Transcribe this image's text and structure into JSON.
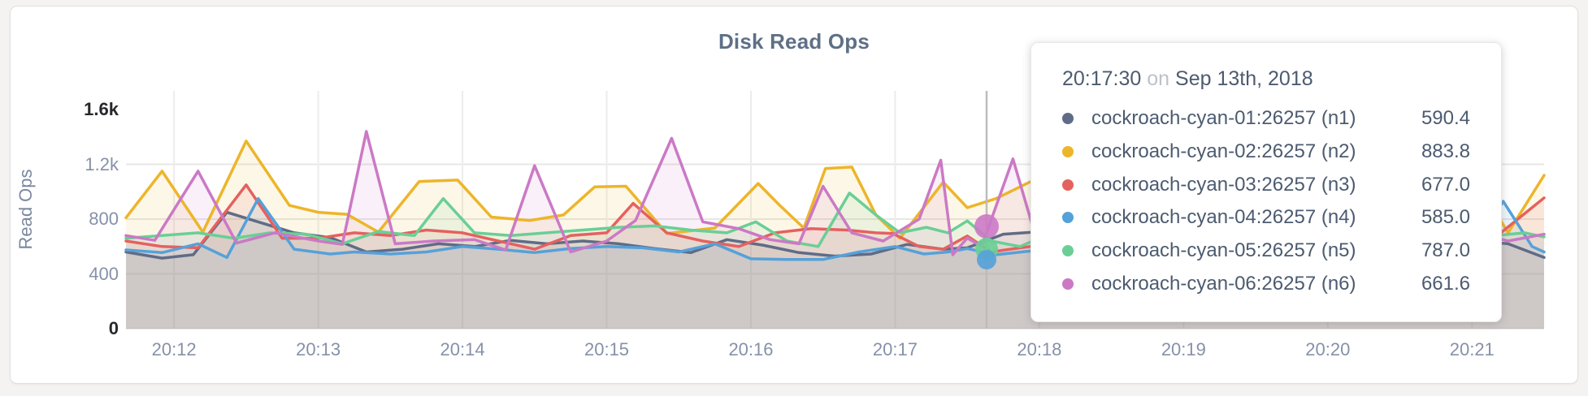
{
  "chart": {
    "title": "Disk Read Ops",
    "y_axis_label": "Read Ops"
  },
  "chart_data": {
    "type": "line",
    "title": "Disk Read Ops",
    "xlabel": "",
    "ylabel": "Read Ops",
    "x_start": "20:11:40",
    "x_end": "20:21:30",
    "x_unit_seconds": 590,
    "ylim": [
      0,
      1600
    ],
    "grid": true,
    "legend_position": "tooltip",
    "x_ticks": [
      {
        "t": 20,
        "label": "20:12"
      },
      {
        "t": 80,
        "label": "20:13"
      },
      {
        "t": 140,
        "label": "20:14"
      },
      {
        "t": 200,
        "label": "20:15"
      },
      {
        "t": 260,
        "label": "20:16"
      },
      {
        "t": 320,
        "label": "20:17"
      },
      {
        "t": 380,
        "label": "20:18"
      },
      {
        "t": 440,
        "label": "20:19"
      },
      {
        "t": 500,
        "label": "20:20"
      },
      {
        "t": 560,
        "label": "20:21"
      }
    ],
    "y_ticks": [
      {
        "v": 0,
        "label": "0",
        "strong": true,
        "gridline": true
      },
      {
        "v": 400,
        "label": "400",
        "strong": false,
        "gridline": true
      },
      {
        "v": 800,
        "label": "800",
        "strong": false,
        "gridline": true
      },
      {
        "v": 1200,
        "label": "1.2k",
        "strong": false,
        "gridline": true
      },
      {
        "v": 1600,
        "label": "1.6k",
        "strong": true,
        "gridline": false
      }
    ],
    "series": [
      {
        "name": "cockroach-cyan-01:26257 (n1)",
        "color": "#5f6c87",
        "points": [
          [
            0,
            560
          ],
          [
            15,
            515
          ],
          [
            28,
            540
          ],
          [
            42,
            850
          ],
          [
            55,
            780
          ],
          [
            70,
            700
          ],
          [
            85,
            665
          ],
          [
            100,
            560
          ],
          [
            115,
            580
          ],
          [
            130,
            620
          ],
          [
            145,
            600
          ],
          [
            160,
            645
          ],
          [
            175,
            620
          ],
          [
            190,
            640
          ],
          [
            205,
            620
          ],
          [
            220,
            585
          ],
          [
            235,
            555
          ],
          [
            250,
            650
          ],
          [
            265,
            610
          ],
          [
            280,
            555
          ],
          [
            295,
            530
          ],
          [
            310,
            545
          ],
          [
            325,
            615
          ],
          [
            340,
            580
          ],
          [
            350,
            590.4
          ],
          [
            365,
            690
          ],
          [
            378,
            705
          ],
          [
            392,
            690
          ],
          [
            410,
            650
          ],
          [
            430,
            600
          ],
          [
            450,
            640
          ],
          [
            470,
            580
          ],
          [
            490,
            620
          ],
          [
            510,
            650
          ],
          [
            530,
            600
          ],
          [
            548,
            575
          ],
          [
            562,
            640
          ],
          [
            575,
            620
          ],
          [
            590,
            520
          ]
        ]
      },
      {
        "name": "cockroach-cyan-02:26257 (n2)",
        "color": "#edb529",
        "points": [
          [
            0,
            810
          ],
          [
            15,
            1150
          ],
          [
            32,
            705
          ],
          [
            50,
            1370
          ],
          [
            68,
            900
          ],
          [
            80,
            850
          ],
          [
            92,
            835
          ],
          [
            105,
            705
          ],
          [
            122,
            1075
          ],
          [
            138,
            1085
          ],
          [
            152,
            815
          ],
          [
            168,
            790
          ],
          [
            182,
            830
          ],
          [
            195,
            1035
          ],
          [
            208,
            1040
          ],
          [
            225,
            695
          ],
          [
            245,
            735
          ],
          [
            263,
            1060
          ],
          [
            272,
            900
          ],
          [
            282,
            735
          ],
          [
            291,
            1170
          ],
          [
            302,
            1180
          ],
          [
            312,
            830
          ],
          [
            322,
            660
          ],
          [
            340,
            1070
          ],
          [
            350,
            883.8
          ],
          [
            362,
            950
          ],
          [
            380,
            1105
          ],
          [
            395,
            1000
          ],
          [
            410,
            870
          ],
          [
            425,
            920
          ],
          [
            440,
            780
          ],
          [
            455,
            850
          ],
          [
            470,
            920
          ],
          [
            485,
            800
          ],
          [
            500,
            760
          ],
          [
            515,
            880
          ],
          [
            530,
            820
          ],
          [
            545,
            760
          ],
          [
            562,
            1085
          ],
          [
            575,
            700
          ],
          [
            590,
            1120
          ]
        ]
      },
      {
        "name": "cockroach-cyan-03:26257 (n3)",
        "color": "#e5615e",
        "points": [
          [
            0,
            640
          ],
          [
            15,
            600
          ],
          [
            30,
            590
          ],
          [
            50,
            1050
          ],
          [
            65,
            660
          ],
          [
            80,
            660
          ],
          [
            95,
            700
          ],
          [
            110,
            680
          ],
          [
            125,
            720
          ],
          [
            140,
            700
          ],
          [
            155,
            640
          ],
          [
            170,
            580
          ],
          [
            185,
            680
          ],
          [
            200,
            700
          ],
          [
            211,
            915
          ],
          [
            225,
            700
          ],
          [
            240,
            640
          ],
          [
            255,
            600
          ],
          [
            270,
            700
          ],
          [
            285,
            730
          ],
          [
            300,
            720
          ],
          [
            312,
            700
          ],
          [
            319,
            695
          ],
          [
            330,
            600
          ],
          [
            340,
            580
          ],
          [
            350,
            677
          ],
          [
            360,
            560
          ],
          [
            372,
            590
          ],
          [
            385,
            620
          ],
          [
            400,
            650
          ],
          [
            420,
            700
          ],
          [
            440,
            620
          ],
          [
            460,
            680
          ],
          [
            480,
            640
          ],
          [
            500,
            700
          ],
          [
            520,
            660
          ],
          [
            540,
            620
          ],
          [
            560,
            620
          ],
          [
            572,
            700
          ],
          [
            590,
            955
          ]
        ]
      },
      {
        "name": "cockroach-cyan-04:26257 (n4)",
        "color": "#55a1d9",
        "points": [
          [
            0,
            575
          ],
          [
            15,
            555
          ],
          [
            30,
            620
          ],
          [
            42,
            520
          ],
          [
            55,
            950
          ],
          [
            70,
            580
          ],
          [
            85,
            545
          ],
          [
            95,
            560
          ],
          [
            110,
            545
          ],
          [
            125,
            560
          ],
          [
            140,
            600
          ],
          [
            155,
            580
          ],
          [
            170,
            555
          ],
          [
            185,
            585
          ],
          [
            200,
            600
          ],
          [
            215,
            590
          ],
          [
            230,
            560
          ],
          [
            245,
            620
          ],
          [
            260,
            510
          ],
          [
            275,
            505
          ],
          [
            290,
            505
          ],
          [
            305,
            560
          ],
          [
            320,
            600
          ],
          [
            332,
            545
          ],
          [
            342,
            560
          ],
          [
            350,
            585
          ],
          [
            362,
            540
          ],
          [
            375,
            565
          ],
          [
            390,
            580
          ],
          [
            410,
            560
          ],
          [
            430,
            600
          ],
          [
            450,
            570
          ],
          [
            470,
            590
          ],
          [
            490,
            560
          ],
          [
            510,
            580
          ],
          [
            530,
            610
          ],
          [
            545,
            580
          ],
          [
            560,
            565
          ],
          [
            573,
            930
          ],
          [
            585,
            600
          ],
          [
            590,
            560
          ]
        ]
      },
      {
        "name": "cockroach-cyan-05:26257 (n5)",
        "color": "#69cf95",
        "points": [
          [
            0,
            660
          ],
          [
            15,
            680
          ],
          [
            30,
            700
          ],
          [
            45,
            660
          ],
          [
            60,
            700
          ],
          [
            75,
            690
          ],
          [
            90,
            620
          ],
          [
            105,
            710
          ],
          [
            120,
            680
          ],
          [
            132,
            950
          ],
          [
            145,
            700
          ],
          [
            160,
            680
          ],
          [
            175,
            700
          ],
          [
            190,
            720
          ],
          [
            205,
            740
          ],
          [
            220,
            750
          ],
          [
            235,
            720
          ],
          [
            250,
            700
          ],
          [
            262,
            780
          ],
          [
            275,
            640
          ],
          [
            288,
            600
          ],
          [
            301,
            990
          ],
          [
            312,
            830
          ],
          [
            322,
            700
          ],
          [
            333,
            740
          ],
          [
            342,
            700
          ],
          [
            350,
            787
          ],
          [
            360,
            640
          ],
          [
            372,
            600
          ],
          [
            385,
            700
          ],
          [
            400,
            680
          ],
          [
            420,
            700
          ],
          [
            440,
            660
          ],
          [
            460,
            700
          ],
          [
            480,
            680
          ],
          [
            500,
            720
          ],
          [
            520,
            690
          ],
          [
            540,
            700
          ],
          [
            558,
            750
          ],
          [
            570,
            680
          ],
          [
            582,
            700
          ],
          [
            590,
            670
          ]
        ]
      },
      {
        "name": "cockroach-cyan-06:26257 (n6)",
        "color": "#cb79c5",
        "points": [
          [
            0,
            680
          ],
          [
            12,
            645
          ],
          [
            30,
            1150
          ],
          [
            46,
            625
          ],
          [
            62,
            700
          ],
          [
            80,
            640
          ],
          [
            90,
            615
          ],
          [
            100,
            1440
          ],
          [
            112,
            620
          ],
          [
            128,
            640
          ],
          [
            145,
            650
          ],
          [
            158,
            575
          ],
          [
            170,
            1190
          ],
          [
            185,
            560
          ],
          [
            200,
            640
          ],
          [
            212,
            790
          ],
          [
            227,
            1390
          ],
          [
            240,
            780
          ],
          [
            255,
            730
          ],
          [
            268,
            650
          ],
          [
            280,
            620
          ],
          [
            290,
            1040
          ],
          [
            302,
            700
          ],
          [
            315,
            640
          ],
          [
            330,
            800
          ],
          [
            339,
            1230
          ],
          [
            344,
            540
          ],
          [
            350,
            661.6
          ],
          [
            356,
            600
          ],
          [
            369,
            1240
          ],
          [
            378,
            700
          ],
          [
            395,
            900
          ],
          [
            410,
            700
          ],
          [
            430,
            640
          ],
          [
            450,
            700
          ],
          [
            470,
            620
          ],
          [
            490,
            680
          ],
          [
            510,
            650
          ],
          [
            530,
            700
          ],
          [
            548,
            640
          ],
          [
            562,
            700
          ],
          [
            575,
            640
          ],
          [
            590,
            690
          ]
        ]
      }
    ],
    "hover": {
      "time": "20:17:30",
      "t": 350,
      "values": {
        "n1": 590.4,
        "n2": 883.8,
        "n3": 677.0,
        "n4": 585.0,
        "n5": 787.0,
        "n6": 661.6
      }
    }
  },
  "tooltip": {
    "time": "20:17:30",
    "conjunction": "on",
    "date": "Sep 13th, 2018",
    "rows": [
      {
        "label": "cockroach-cyan-01:26257 (n1)",
        "value": "590.4",
        "color": "#5f6c87"
      },
      {
        "label": "cockroach-cyan-02:26257 (n2)",
        "value": "883.8",
        "color": "#edb529"
      },
      {
        "label": "cockroach-cyan-03:26257 (n3)",
        "value": "677.0",
        "color": "#e5615e"
      },
      {
        "label": "cockroach-cyan-04:26257 (n4)",
        "value": "585.0",
        "color": "#55a1d9"
      },
      {
        "label": "cockroach-cyan-05:26257 (n5)",
        "value": "787.0",
        "color": "#69cf95"
      },
      {
        "label": "cockroach-cyan-06:26257 (n6)",
        "value": "661.6",
        "color": "#cb79c5"
      }
    ]
  }
}
